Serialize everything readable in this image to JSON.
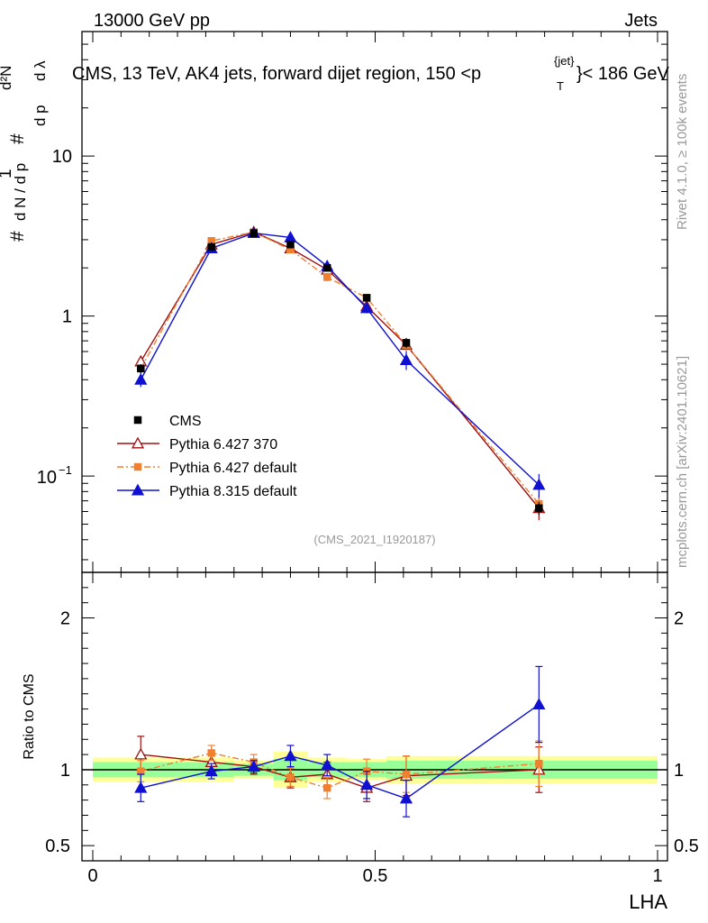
{
  "header": {
    "left": "13000 GeV pp",
    "right": "Jets"
  },
  "side": {
    "rivet": "Rivet 4.1.0, ≥ 100k events",
    "site": "mcplots.cern.ch [arXiv:2401.10621]"
  },
  "chart_data": {
    "type": "line",
    "title": "CMS, 13 TeV, AK4 jets, forward dijet region, 150 <p",
    "title_sup": "{jet}",
    "title_sub": "T",
    "title_tail": "}< 186 GeV",
    "analysis_id": "(CMS_2021_I1920187)",
    "xlabel": "LHA",
    "ylabel_main": "# 1/dN/dpT # d²N/dpT dλ",
    "ylabel_ratio": "Ratio to CMS",
    "xlim": [
      0,
      1
    ],
    "ylim_main": [
      0.025,
      60
    ],
    "ylim_ratio": [
      0.4,
      2.3
    ],
    "yscale_main": "log",
    "main_ticks": [
      "1",
      "10"
    ],
    "minus1_base": "10",
    "minus1_exp": "−1",
    "x_ticks": [
      "0",
      "0.5",
      "1"
    ],
    "ratio_ticks": [
      "0.5",
      "1",
      "2"
    ],
    "x": [
      0.085,
      0.21,
      0.285,
      0.35,
      0.415,
      0.485,
      0.555,
      0.79
    ],
    "bin_edges": [
      0,
      0.17,
      0.25,
      0.32,
      0.38,
      0.45,
      0.52,
      0.59,
      1.0
    ],
    "data": {
      "name": "CMS",
      "values": [
        0.47,
        2.7,
        3.3,
        2.8,
        2.0,
        1.3,
        0.68,
        0.063
      ],
      "errors": [
        0.03,
        0.1,
        0.1,
        0.1,
        0.1,
        0.07,
        0.05,
        0.006
      ]
    },
    "band_inner": [
      0.05,
      0.05,
      0.04,
      0.07,
      0.05,
      0.05,
      0.06,
      0.06
    ],
    "band_outer": [
      0.08,
      0.08,
      0.06,
      0.12,
      0.08,
      0.07,
      0.09,
      0.09
    ],
    "series": [
      {
        "name": "Pythia 6.427 370",
        "color": "#a01010",
        "marker": "triangle-open",
        "dash": "",
        "values": [
          0.52,
          2.8,
          3.35,
          2.65,
          1.95,
          1.15,
          0.66,
          0.063
        ],
        "errors": [
          0.04,
          0.1,
          0.1,
          0.1,
          0.1,
          0.07,
          0.06,
          0.01
        ],
        "ratio": [
          1.1,
          1.05,
          1.02,
          0.95,
          0.97,
          0.88,
          0.96,
          1.0
        ],
        "ratio_err": [
          0.12,
          0.06,
          0.05,
          0.07,
          0.08,
          0.09,
          0.13,
          0.15
        ]
      },
      {
        "name": "Pythia 6.427 default",
        "color": "#f08030",
        "marker": "square",
        "dash": "7,3,2,3",
        "values": [
          0.47,
          2.95,
          3.35,
          2.6,
          1.75,
          1.3,
          0.66,
          0.067
        ],
        "errors": [
          0.03,
          0.1,
          0.1,
          0.1,
          0.1,
          0.07,
          0.06,
          0.01
        ],
        "ratio": [
          0.99,
          1.11,
          1.05,
          0.95,
          0.88,
          0.99,
          0.97,
          1.04
        ],
        "ratio_err": [
          0.07,
          0.05,
          0.05,
          0.06,
          0.07,
          0.08,
          0.12,
          0.15
        ]
      },
      {
        "name": "Pythia 8.315 default",
        "color": "#1010d0",
        "marker": "triangle",
        "dash": "",
        "values": [
          0.4,
          2.65,
          3.3,
          3.1,
          2.05,
          1.12,
          0.53,
          0.088
        ],
        "errors": [
          0.04,
          0.1,
          0.1,
          0.15,
          0.1,
          0.08,
          0.07,
          0.015
        ],
        "ratio": [
          0.88,
          0.99,
          1.02,
          1.09,
          1.03,
          0.9,
          0.81,
          1.43
        ],
        "ratio_err": [
          0.09,
          0.05,
          0.04,
          0.07,
          0.07,
          0.09,
          0.12,
          0.25
        ]
      }
    ]
  }
}
